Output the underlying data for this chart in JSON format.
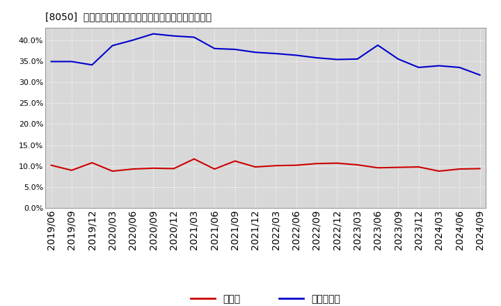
{
  "title": "[8050]  現預金、有利子負債の総資産に対する比率の推移",
  "x_labels": [
    "2019/06",
    "2019/09",
    "2019/12",
    "2020/03",
    "2020/06",
    "2020/09",
    "2020/12",
    "2021/03",
    "2021/06",
    "2021/09",
    "2021/12",
    "2022/03",
    "2022/06",
    "2022/09",
    "2022/12",
    "2023/03",
    "2023/06",
    "2023/09",
    "2023/12",
    "2024/03",
    "2024/06",
    "2024/09"
  ],
  "cash": [
    10.2,
    9.0,
    10.8,
    8.8,
    9.3,
    9.5,
    9.4,
    11.7,
    9.3,
    11.2,
    9.8,
    10.1,
    10.2,
    10.6,
    10.7,
    10.3,
    9.6,
    9.7,
    9.8,
    8.8,
    9.3,
    9.4
  ],
  "debt": [
    34.9,
    34.9,
    34.1,
    38.7,
    40.0,
    41.5,
    41.0,
    40.7,
    38.0,
    37.8,
    37.1,
    36.8,
    36.4,
    35.8,
    35.4,
    35.5,
    38.8,
    35.5,
    33.5,
    33.9,
    33.5,
    31.7
  ],
  "cash_color": "#cc0000",
  "debt_color": "#0000cc",
  "bg_color": "#ffffff",
  "plot_bg_color": "#d8d8d8",
  "grid_color": "#ffffff",
  "legend_cash": "現預金",
  "legend_debt": "有利子負債",
  "ylim": [
    0,
    43
  ],
  "yticks": [
    0.0,
    5.0,
    10.0,
    15.0,
    20.0,
    25.0,
    30.0,
    35.0,
    40.0
  ]
}
